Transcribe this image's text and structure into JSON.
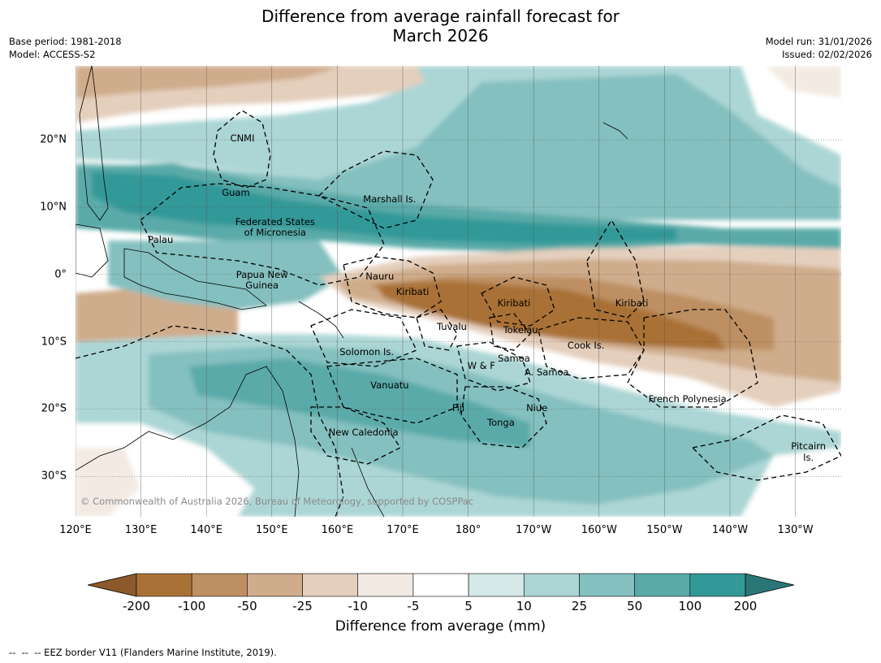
{
  "title_line1": "Difference from average rainfall forecast for",
  "title_line2": "March 2026",
  "meta": {
    "base_period": "Base period: 1981-2018",
    "model": "Model: ACCESS-S2",
    "model_run": "Model run: 31/01/2026",
    "issued": "Issued: 02/02/2026"
  },
  "axes": {
    "lon_labels": [
      "120°E",
      "130°E",
      "140°E",
      "150°E",
      "160°E",
      "170°E",
      "180°",
      "170°W",
      "160°W",
      "150°W",
      "140°W",
      "130°W"
    ],
    "lon_values": [
      120,
      130,
      140,
      150,
      160,
      170,
      180,
      190,
      200,
      210,
      220,
      230
    ],
    "lat_labels": [
      "20°N",
      "10°N",
      "0°",
      "10°S",
      "20°S",
      "30°S"
    ],
    "lat_values": [
      20,
      10,
      0,
      -10,
      -20,
      -30
    ],
    "lon_range": [
      120,
      237
    ],
    "lat_range": [
      -36,
      31
    ]
  },
  "regions": [
    {
      "name": "CNMI",
      "lon": 145.5,
      "lat": 20.2
    },
    {
      "name": "Guam",
      "lon": 144.5,
      "lat": 12.2
    },
    {
      "name": "Marshall Is.",
      "lon": 168,
      "lat": 11.2
    },
    {
      "name": "Federated States",
      "lon": 150.5,
      "lat": 7.8
    },
    {
      "name": "of Micronesia",
      "lon": 150.5,
      "lat": 6.2
    },
    {
      "name": "Palau",
      "lon": 133,
      "lat": 5.2
    },
    {
      "name": "Papua New",
      "lon": 148.5,
      "lat": 0
    },
    {
      "name": "Guinea",
      "lon": 148.5,
      "lat": -1.6
    },
    {
      "name": "Nauru",
      "lon": 166.5,
      "lat": -0.3
    },
    {
      "name": "Kiribati",
      "lon": 171.5,
      "lat": -2.5
    },
    {
      "name": "Kiribati",
      "lon": 187,
      "lat": -4.2
    },
    {
      "name": "Kiribati",
      "lon": 205,
      "lat": -4.2
    },
    {
      "name": "Tuvalu",
      "lon": 177.5,
      "lat": -7.8
    },
    {
      "name": "Tokelau",
      "lon": 188,
      "lat": -8.2
    },
    {
      "name": "Cook Is.",
      "lon": 198,
      "lat": -10.5
    },
    {
      "name": "Solomon Is.",
      "lon": 164.5,
      "lat": -11.5
    },
    {
      "name": "Samoa",
      "lon": 187,
      "lat": -12.5
    },
    {
      "name": "W & F",
      "lon": 182,
      "lat": -13.5
    },
    {
      "name": "A. Samoa",
      "lon": 192,
      "lat": -14.5
    },
    {
      "name": "Vanuatu",
      "lon": 168,
      "lat": -16.5
    },
    {
      "name": "French Polynesia",
      "lon": 213.5,
      "lat": -18.5
    },
    {
      "name": "Fiji",
      "lon": 178.5,
      "lat": -19.8
    },
    {
      "name": "Niue",
      "lon": 190.5,
      "lat": -19.8
    },
    {
      "name": "Tonga",
      "lon": 185,
      "lat": -22
    },
    {
      "name": "New Caledonia",
      "lon": 164,
      "lat": -23.5
    },
    {
      "name": "Pitcairn",
      "lon": 232,
      "lat": -25.5
    },
    {
      "name": "Is.",
      "lon": 232,
      "lat": -27.2
    }
  ],
  "copyright": "© Commonwealth of Australia 2026, Bureau of Meteorology, supported by COSPPac",
  "colorbar": {
    "boundaries": [
      "-200",
      "-100",
      "-50",
      "-25",
      "-10",
      "-5",
      "5",
      "10",
      "25",
      "50",
      "100",
      "200"
    ],
    "colors": [
      "#a97136",
      "#bd8f62",
      "#cfac8b",
      "#e4cfbd",
      "#f3ebe3",
      "#ffffff",
      "#d4e9e8",
      "#acd6d5",
      "#84c0bf",
      "#5aaaa9",
      "#339998"
    ],
    "under_color": "#8c5a2a",
    "over_color": "#2a7676",
    "label": "Difference from average (mm)"
  },
  "footnote": "--  --  -- EEZ border V11 (Flanders Marine Institute, 2019)."
}
